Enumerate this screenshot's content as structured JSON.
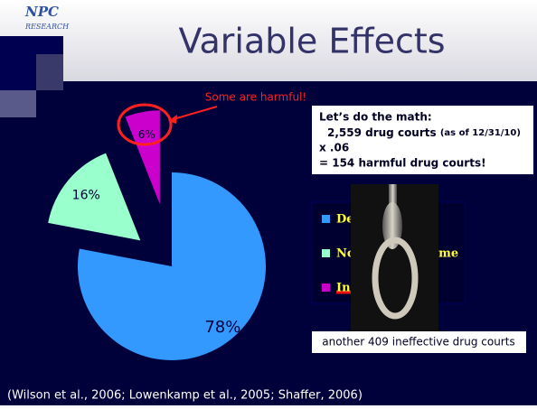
{
  "logo": {
    "top": "NPC",
    "bottom": "RESEARCH"
  },
  "slide_title": "Variable Effects",
  "annotation": "Some are harmful!",
  "math": {
    "line1": "Let’s do the math:",
    "line2": "2,559 drug courts",
    "line2_note": "(as of 12/31/10)",
    "line3": "x  .06",
    "line4": "= 154 harmful drug courts!"
  },
  "ineffective_note": "another 409 ineffective drug courts",
  "citation": "(Wilson et al., 2006; Lowenkamp et al., 2005; Shaffer, 2006)",
  "chart_data": {
    "type": "pie",
    "categories": [
      "Decrease crime",
      "No effect on crime",
      "Increase crime"
    ],
    "values": [
      78,
      16,
      6
    ],
    "value_labels": [
      "78%",
      "16%",
      "6%"
    ],
    "colors": [
      "#3399ff",
      "#99ffcc",
      "#cc00cc"
    ]
  }
}
